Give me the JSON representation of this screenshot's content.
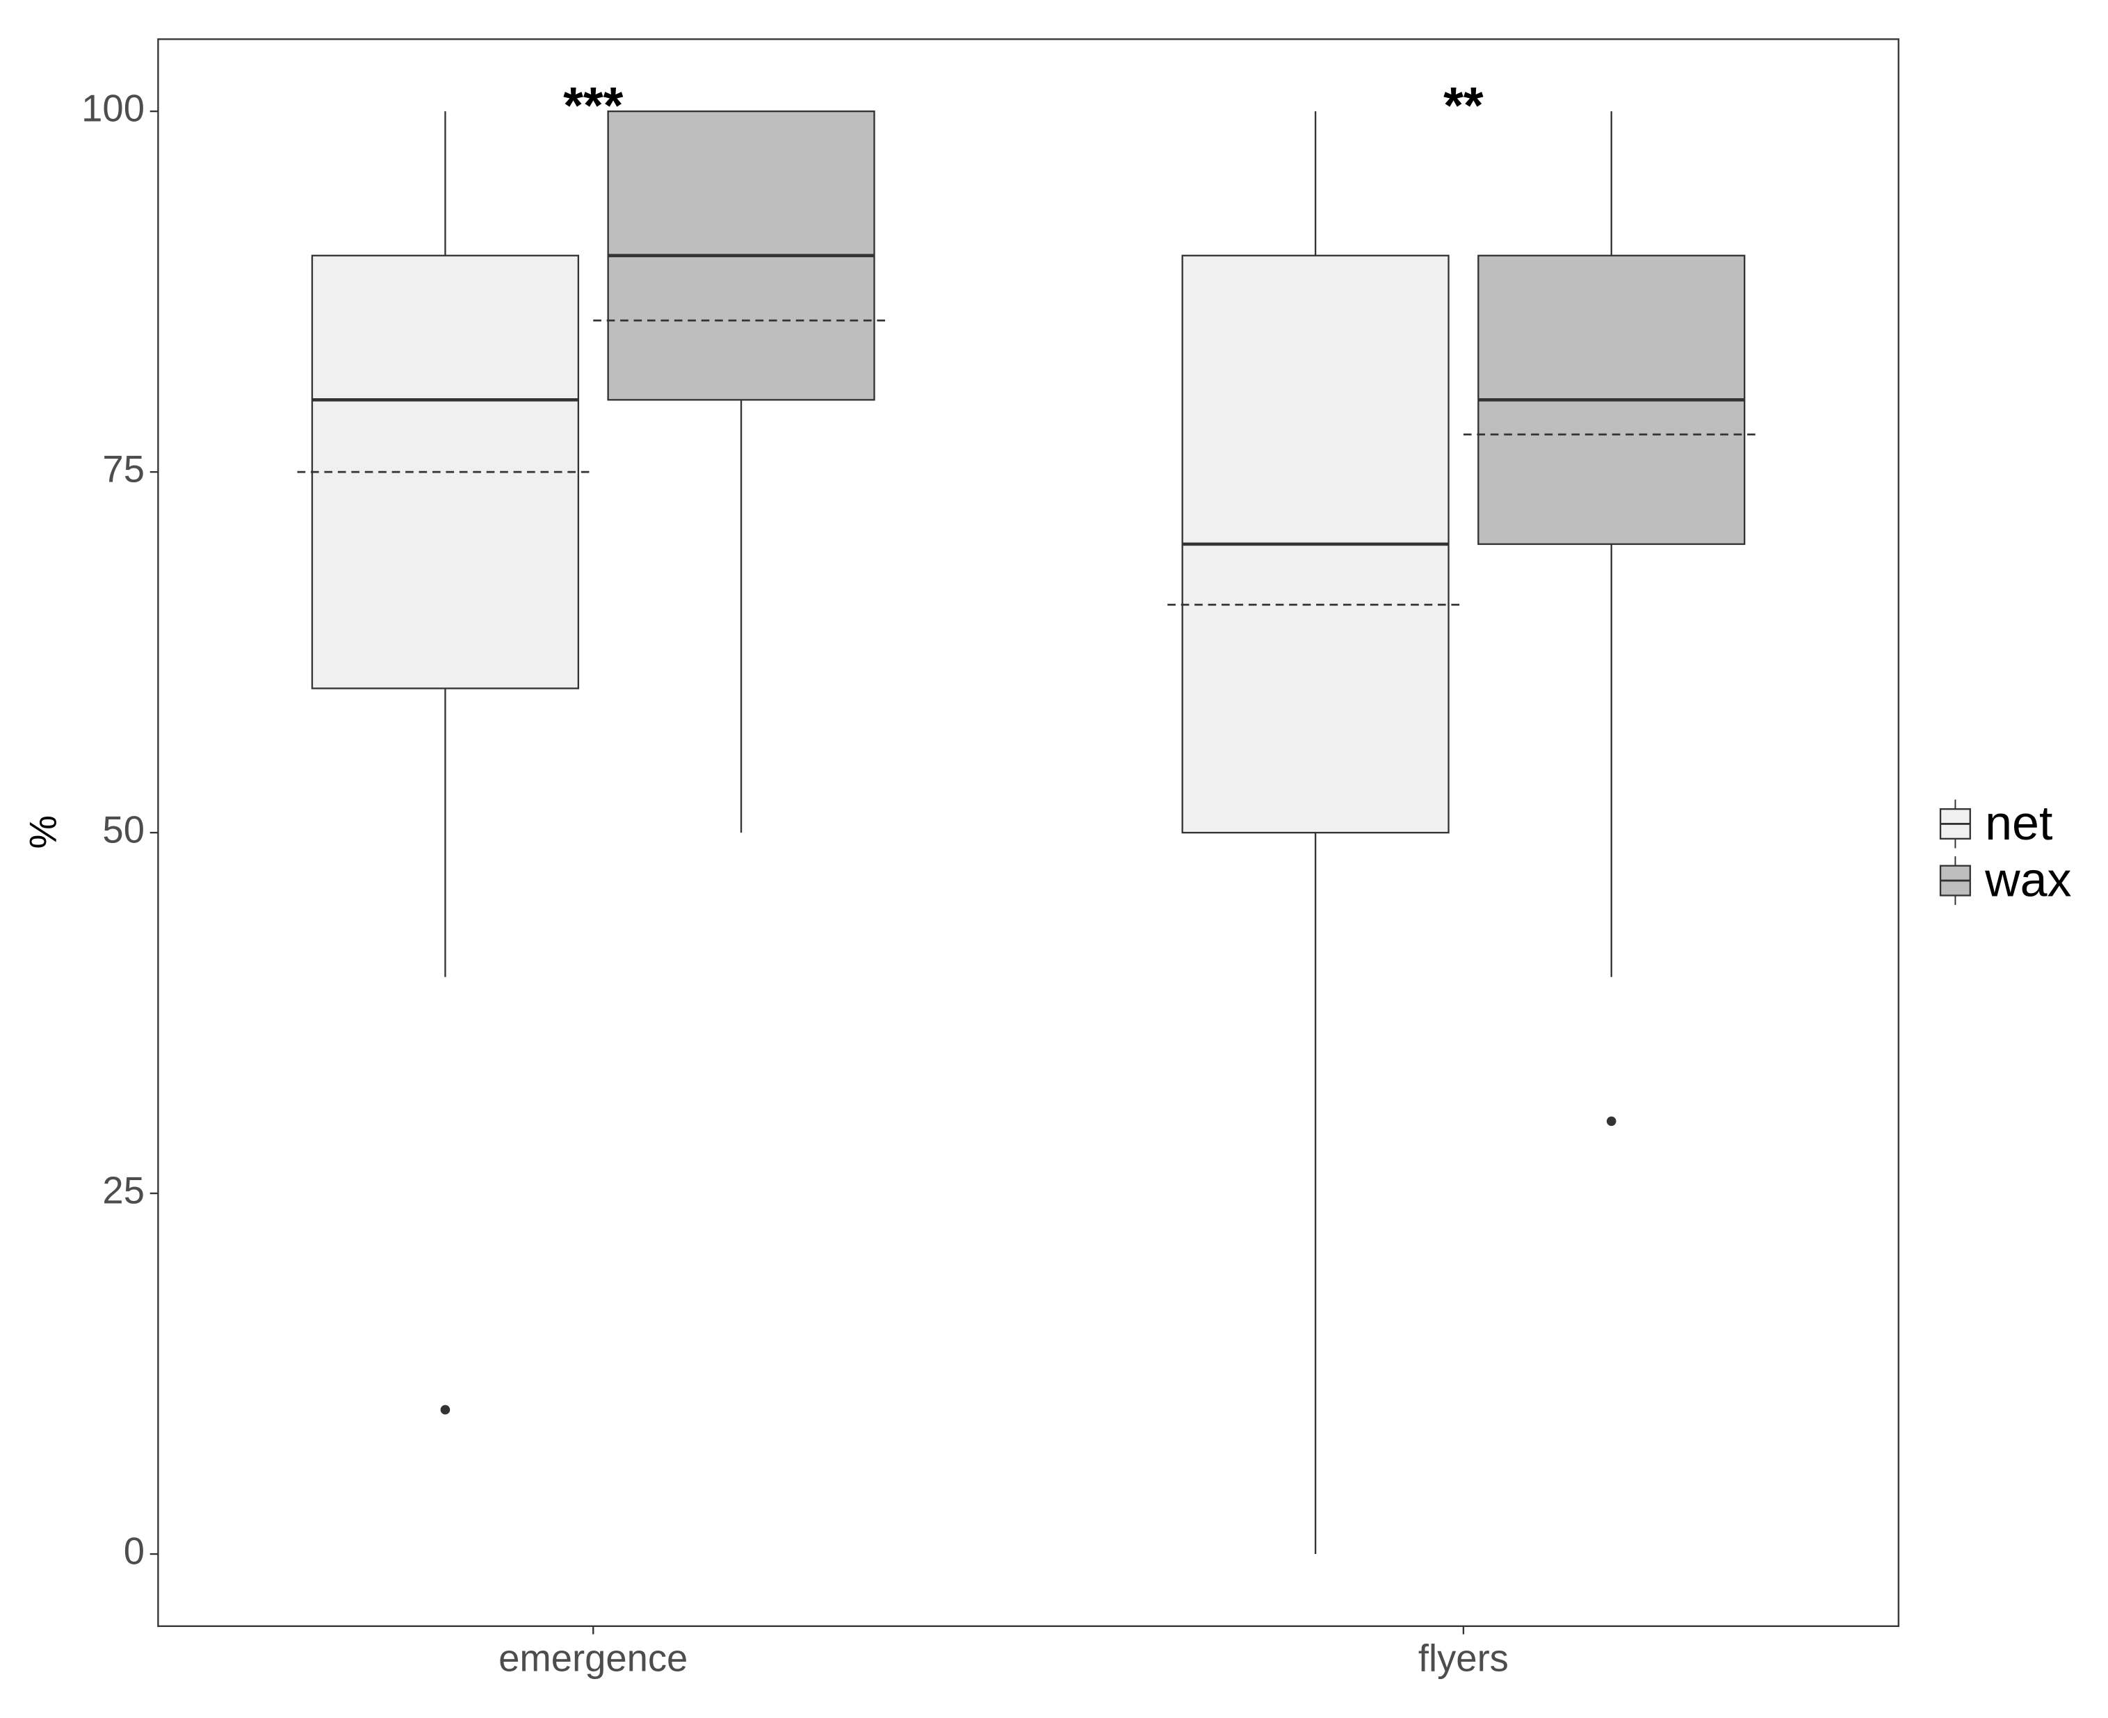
{
  "chart_data": {
    "type": "boxplot",
    "categories": [
      "emergence",
      "flyers"
    ],
    "y_label": "%",
    "annotations": [
      "***",
      "**"
    ],
    "series": [
      {
        "name": "net",
        "color": "#f0f0f0",
        "boxes": [
          {
            "whislo": 40,
            "q1": 60,
            "median": 80,
            "q3": 90,
            "whishi": 100,
            "mean": 75,
            "outliers": [
              10
            ]
          },
          {
            "whislo": 0,
            "q1": 50,
            "median": 70,
            "q3": 90,
            "whishi": 100,
            "mean": 65.8,
            "outliers": []
          }
        ]
      },
      {
        "name": "wax",
        "color": "#bebebe",
        "boxes": [
          {
            "whislo": 50,
            "q1": 80,
            "median": 90,
            "q3": 100,
            "whishi": 100,
            "mean": 85.5,
            "outliers": []
          },
          {
            "whislo": 40,
            "q1": 70,
            "median": 80,
            "q3": 90,
            "whishi": 100,
            "mean": 77.6,
            "outliers": [
              30
            ]
          }
        ]
      }
    ],
    "ylim": [
      -5,
      105
    ],
    "yticks": [
      0,
      25,
      50,
      75,
      100
    ],
    "grid": false,
    "legend": "right"
  }
}
